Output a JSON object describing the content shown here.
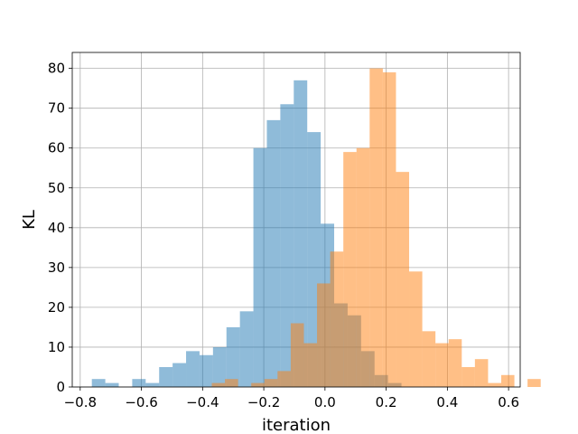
{
  "chart_data": {
    "type": "histogram",
    "title": "",
    "xlabel": "iteration",
    "ylabel": "KL",
    "xlim": [
      -0.826,
      0.638
    ],
    "ylim": [
      0,
      84
    ],
    "grid": true,
    "x_ticks": [
      -0.8,
      -0.6,
      -0.4,
      -0.2,
      0.0,
      0.2,
      0.4,
      0.6
    ],
    "x_tick_labels": [
      "−0.8",
      "−0.6",
      "−0.4",
      "−0.2",
      "0.0",
      "0.2",
      "0.4",
      "0.6"
    ],
    "y_ticks": [
      0,
      10,
      20,
      30,
      40,
      50,
      60,
      70,
      80
    ],
    "y_tick_labels": [
      "0",
      "10",
      "20",
      "30",
      "40",
      "50",
      "60",
      "70",
      "80"
    ],
    "series": [
      {
        "color": "#1f77b4",
        "opacity": 0.5,
        "bins": [
          {
            "x0": -0.762,
            "x1": -0.718,
            "count": 2
          },
          {
            "x0": -0.718,
            "x1": -0.674,
            "count": 1
          },
          {
            "x0": -0.674,
            "x1": -0.63,
            "count": 0
          },
          {
            "x0": -0.63,
            "x1": -0.586,
            "count": 2
          },
          {
            "x0": -0.586,
            "x1": -0.542,
            "count": 1
          },
          {
            "x0": -0.542,
            "x1": -0.498,
            "count": 5
          },
          {
            "x0": -0.498,
            "x1": -0.454,
            "count": 6
          },
          {
            "x0": -0.454,
            "x1": -0.41,
            "count": 9
          },
          {
            "x0": -0.41,
            "x1": -0.366,
            "count": 8
          },
          {
            "x0": -0.366,
            "x1": -0.322,
            "count": 10
          },
          {
            "x0": -0.322,
            "x1": -0.278,
            "count": 15
          },
          {
            "x0": -0.278,
            "x1": -0.234,
            "count": 19
          },
          {
            "x0": -0.234,
            "x1": -0.19,
            "count": 60
          },
          {
            "x0": -0.19,
            "x1": -0.146,
            "count": 67
          },
          {
            "x0": -0.146,
            "x1": -0.102,
            "count": 71
          },
          {
            "x0": -0.102,
            "x1": -0.058,
            "count": 77
          },
          {
            "x0": -0.058,
            "x1": -0.014,
            "count": 64
          },
          {
            "x0": -0.014,
            "x1": 0.03,
            "count": 41
          },
          {
            "x0": 0.03,
            "x1": 0.074,
            "count": 21
          },
          {
            "x0": 0.074,
            "x1": 0.118,
            "count": 18
          },
          {
            "x0": 0.118,
            "x1": 0.162,
            "count": 9
          },
          {
            "x0": 0.162,
            "x1": 0.206,
            "count": 3
          },
          {
            "x0": 0.206,
            "x1": 0.25,
            "count": 1
          }
        ]
      },
      {
        "color": "#ff7f0e",
        "opacity": 0.5,
        "bins": [
          {
            "x0": -0.37,
            "x1": -0.327,
            "count": 1
          },
          {
            "x0": -0.327,
            "x1": -0.284,
            "count": 2
          },
          {
            "x0": -0.284,
            "x1": -0.241,
            "count": 0
          },
          {
            "x0": -0.241,
            "x1": -0.198,
            "count": 1
          },
          {
            "x0": -0.198,
            "x1": -0.155,
            "count": 2
          },
          {
            "x0": -0.155,
            "x1": -0.112,
            "count": 4
          },
          {
            "x0": -0.112,
            "x1": -0.069,
            "count": 16
          },
          {
            "x0": -0.069,
            "x1": -0.026,
            "count": 11
          },
          {
            "x0": -0.026,
            "x1": 0.017,
            "count": 26
          },
          {
            "x0": 0.017,
            "x1": 0.06,
            "count": 34
          },
          {
            "x0": 0.06,
            "x1": 0.103,
            "count": 59
          },
          {
            "x0": 0.103,
            "x1": 0.146,
            "count": 60
          },
          {
            "x0": 0.146,
            "x1": 0.189,
            "count": 80
          },
          {
            "x0": 0.189,
            "x1": 0.232,
            "count": 79
          },
          {
            "x0": 0.232,
            "x1": 0.275,
            "count": 54
          },
          {
            "x0": 0.275,
            "x1": 0.318,
            "count": 29
          },
          {
            "x0": 0.318,
            "x1": 0.361,
            "count": 14
          },
          {
            "x0": 0.361,
            "x1": 0.404,
            "count": 11
          },
          {
            "x0": 0.404,
            "x1": 0.447,
            "count": 12
          },
          {
            "x0": 0.447,
            "x1": 0.49,
            "count": 5
          },
          {
            "x0": 0.49,
            "x1": 0.533,
            "count": 7
          },
          {
            "x0": 0.533,
            "x1": 0.576,
            "count": 1
          },
          {
            "x0": 0.576,
            "x1": 0.619,
            "count": 3
          },
          {
            "x0": 0.619,
            "x1": 0.662,
            "count": 0
          },
          {
            "x0": 0.662,
            "x1": 0.705,
            "count": 2
          }
        ]
      }
    ]
  }
}
